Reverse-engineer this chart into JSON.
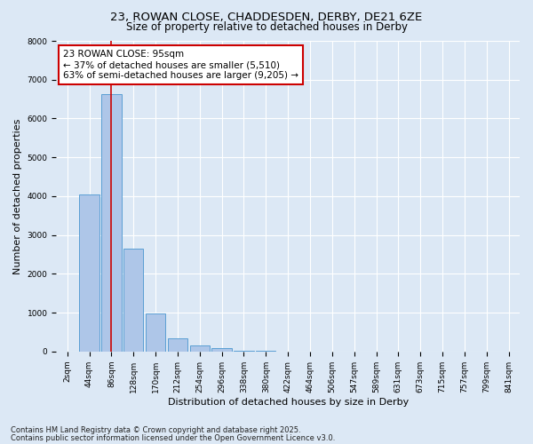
{
  "title_line1": "23, ROWAN CLOSE, CHADDESDEN, DERBY, DE21 6ZE",
  "title_line2": "Size of property relative to detached houses in Derby",
  "xlabel": "Distribution of detached houses by size in Derby",
  "ylabel": "Number of detached properties",
  "categories": [
    "2sqm",
    "44sqm",
    "86sqm",
    "128sqm",
    "170sqm",
    "212sqm",
    "254sqm",
    "296sqm",
    "338sqm",
    "380sqm",
    "422sqm",
    "464sqm",
    "506sqm",
    "547sqm",
    "589sqm",
    "631sqm",
    "673sqm",
    "715sqm",
    "757sqm",
    "799sqm",
    "841sqm"
  ],
  "values": [
    0,
    4050,
    6620,
    2650,
    970,
    350,
    160,
    80,
    30,
    10,
    5,
    2,
    1,
    0,
    0,
    0,
    0,
    0,
    0,
    0,
    0
  ],
  "bar_color": "#aec6e8",
  "bar_edge_color": "#5a9fd4",
  "vline_x": 2,
  "vline_color": "#cc0000",
  "annotation_text": "23 ROWAN CLOSE: 95sqm\n← 37% of detached houses are smaller (5,510)\n63% of semi-detached houses are larger (9,205) →",
  "annotation_box_color": "#ffffff",
  "annotation_box_edge": "#cc0000",
  "ylim": [
    0,
    8000
  ],
  "yticks": [
    0,
    1000,
    2000,
    3000,
    4000,
    5000,
    6000,
    7000,
    8000
  ],
  "bg_color": "#dce8f5",
  "plot_bg_color": "#dce8f5",
  "footer_line1": "Contains HM Land Registry data © Crown copyright and database right 2025.",
  "footer_line2": "Contains public sector information licensed under the Open Government Licence v3.0.",
  "title_fontsize": 9.5,
  "subtitle_fontsize": 8.5,
  "axis_label_fontsize": 8,
  "tick_fontsize": 6.5,
  "annotation_fontsize": 7.5,
  "footer_fontsize": 6
}
